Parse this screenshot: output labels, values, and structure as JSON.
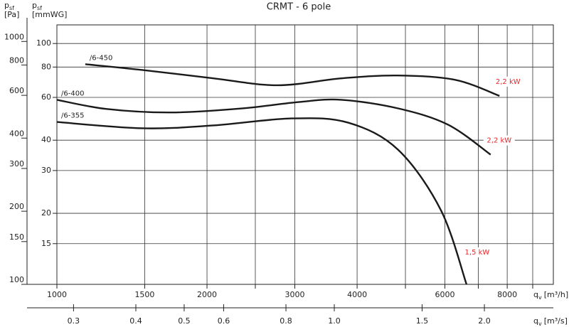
{
  "chart_data": {
    "type": "line",
    "title": "CRMT - 6 pole",
    "xlabel": {
      "symbol": "q",
      "sub": "v",
      "unit": "[m³/h]"
    },
    "x2label": {
      "symbol": "q",
      "sub": "v",
      "unit": "[m³/s]"
    },
    "ylabel": {
      "symbol": "p",
      "sub": "sf",
      "unit": "[Pa]"
    },
    "y2label": {
      "symbol": "p",
      "sub": "sf",
      "unit": "[mmWG]"
    },
    "log_x": true,
    "log_y": true,
    "grid": true,
    "xlim": [
      1000,
      9900
    ],
    "xticks": [
      1000,
      1500,
      2000,
      3000,
      4000,
      6000,
      8000
    ],
    "xminor": [
      2500,
      5000,
      7000,
      9000
    ],
    "x2lim": [
      0.2778,
      2.75
    ],
    "x2ticks": [
      0.3,
      0.4,
      0.5,
      0.6,
      0.8,
      {
        "value": 1.0,
        "label": "1.0"
      },
      1.5,
      {
        "value": 2.0,
        "label": "2.0"
      }
    ],
    "ylim": [
      100,
      1170
    ],
    "yticks": [
      100,
      150,
      200,
      300,
      400,
      600,
      800,
      1000
    ],
    "y2lim": [
      10.2,
      119.3
    ],
    "y2ticks": [
      15,
      20,
      30,
      40,
      60,
      80,
      100
    ],
    "series": [
      {
        "name": "/6-450",
        "power": "2,2 kW",
        "color": "#1a1a1a",
        "x": [
          1140,
          1483,
          2060,
          2766,
          3720,
          4835,
          6290,
          7720
        ],
        "values": [
          806,
          763,
          705,
          660,
          705,
          724,
          695,
          597
        ]
      },
      {
        "name": "/6-400",
        "power": "2,2 kW",
        "color": "#1a1a1a",
        "x": [
          1000,
          1259,
          1692,
          2348,
          3053,
          3720,
          4835,
          6090,
          7410
        ],
        "values": [
          575,
          527,
          510,
          530,
          563,
          575,
          530,
          454,
          342
        ]
      },
      {
        "name": "/6-355",
        "power": "1,5 kW",
        "color": "#1a1a1a",
        "x": [
          1000,
          1483,
          2060,
          2956,
          3840,
          4835,
          5890,
          6630
        ],
        "values": [
          466,
          439,
          451,
          482,
          463,
          358,
          202,
          100
        ]
      }
    ]
  }
}
